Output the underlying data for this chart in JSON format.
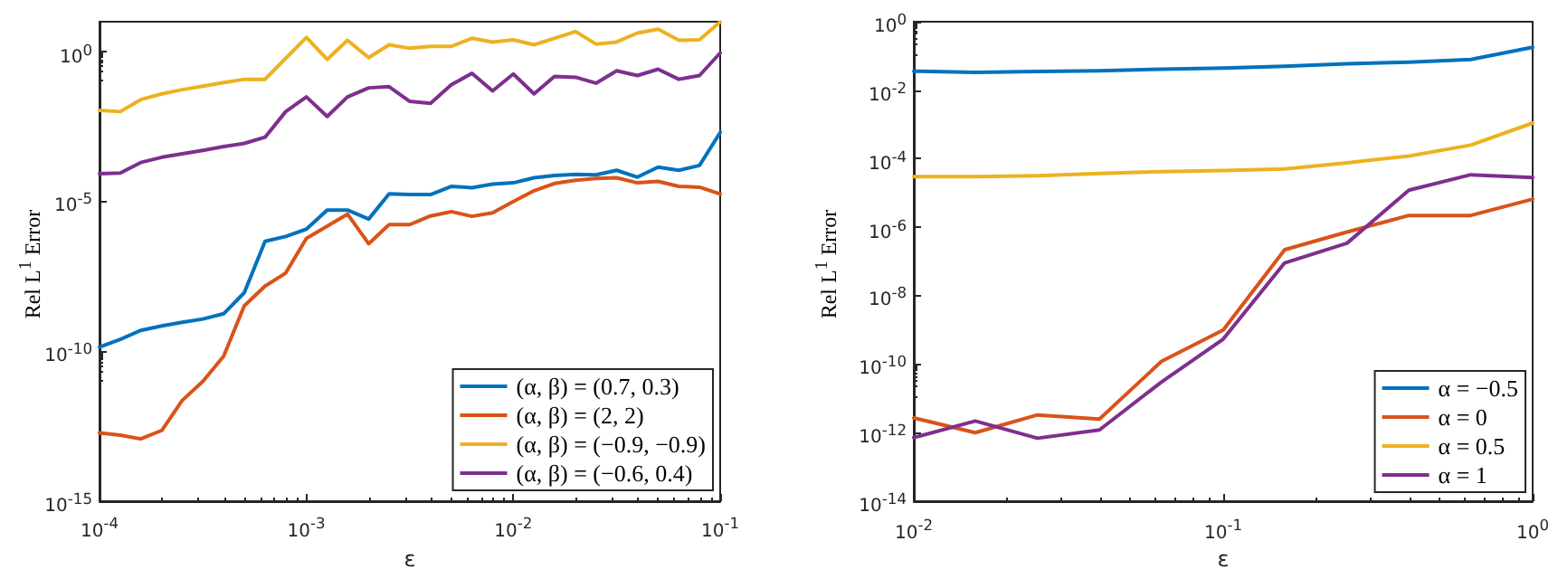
{
  "chart_data": [
    {
      "type": "line",
      "xlabel": "ε",
      "ylabel": "Rel L$^{1}$ Error",
      "log": "xy",
      "grid": false,
      "legend": "bottom right",
      "marker": "none",
      "line_style": "solid",
      "x": [
        0.0001,
        0.000126,
        0.000158,
        0.0002,
        0.000251,
        0.000316,
        0.000398,
        0.000501,
        0.000631,
        0.000794,
        0.001,
        0.00126,
        0.00158,
        0.002,
        0.00251,
        0.00316,
        0.00398,
        0.00501,
        0.00631,
        0.00794,
        0.01,
        0.0126,
        0.0158,
        0.02,
        0.0251,
        0.0316,
        0.0398,
        0.0501,
        0.0631,
        0.0794,
        0.1
      ],
      "xlim": [
        0.0001,
        0.1
      ],
      "ylim": [
        1e-15,
        10
      ],
      "xticks": [
        {
          "value": 0.0001,
          "label": "10$^{-4}$"
        },
        {
          "value": 0.001,
          "label": "10$^{-3}$"
        },
        {
          "value": 0.01,
          "label": "10$^{-2}$"
        },
        {
          "value": 0.1,
          "label": "10$^{-1}$"
        }
      ],
      "yticks": [
        {
          "value": 1e-15,
          "label": "10$^{-15}$"
        },
        {
          "value": 1e-10,
          "label": "10$^{-10}$"
        },
        {
          "value": 1e-05,
          "label": "10$^{-5}$"
        },
        {
          "value": 1,
          "label": "10$^{0}$"
        }
      ],
      "series": [
        {
          "name": "(α, β) = (0.7, 0.3)",
          "color": "#0072bd",
          "values": [
            1.4e-10,
            2.5e-10,
            5e-10,
            7.1e-10,
            9.3e-10,
            1.2e-09,
            1.8e-09,
            9.1e-09,
            4.7e-07,
            6.8e-07,
            1.2e-06,
            5.2e-06,
            5.2e-06,
            2.6e-06,
            1.8e-05,
            1.7e-05,
            1.7e-05,
            3.2e-05,
            2.9e-05,
            3.8e-05,
            4.2e-05,
            6.2e-05,
            7.4e-05,
            8.1e-05,
            7.8e-05,
            0.00011,
            6.5e-05,
            0.00014,
            0.00011,
            0.00016,
            0.002
          ]
        },
        {
          "name": "(α, β) = (2, 2)",
          "color": "#d95319",
          "values": [
            1.9e-13,
            1.6e-13,
            1.2e-13,
            2.3e-13,
            2.3e-12,
            1e-11,
            6.9e-11,
            3.3e-09,
            1.5e-08,
            4.1e-08,
            5.9e-07,
            1.5e-06,
            3.8e-06,
            3.9e-07,
            1.7e-06,
            1.7e-06,
            3.3e-06,
            4.6e-06,
            3.2e-06,
            4.2e-06,
            1e-05,
            2.3e-05,
            4e-05,
            5.1e-05,
            5.9e-05,
            6.2e-05,
            4.2e-05,
            4.7e-05,
            3.2e-05,
            3e-05,
            1.8e-05
          ]
        },
        {
          "name": "(α, β) = (−0.9, −0.9)",
          "color": "#edb120",
          "values": [
            0.011,
            0.01,
            0.025,
            0.039,
            0.054,
            0.071,
            0.093,
            0.12,
            0.12,
            0.6,
            3.0,
            0.55,
            2.4,
            0.63,
            1.7,
            1.3,
            1.5,
            1.5,
            2.8,
            2.1,
            2.5,
            1.7,
            2.8,
            4.7,
            1.8,
            2.1,
            4.2,
            5.6,
            2.4,
            2.5,
            9.8
          ]
        },
        {
          "name": "(α, β) = (−0.6, 0.4)",
          "color": "#7e2f8e",
          "values": [
            8.5e-05,
            8.9e-05,
            0.0002,
            0.0003,
            0.00039,
            0.00051,
            0.00068,
            0.00087,
            0.0014,
            0.01,
            0.031,
            0.0069,
            0.031,
            0.062,
            0.068,
            0.022,
            0.019,
            0.078,
            0.19,
            0.049,
            0.18,
            0.039,
            0.15,
            0.14,
            0.089,
            0.23,
            0.16,
            0.26,
            0.12,
            0.16,
            0.91
          ]
        }
      ]
    },
    {
      "type": "line",
      "xlabel": "ε",
      "ylabel": "Rel L$^{1}$ Error",
      "log": "xy",
      "grid": false,
      "legend": "bottom right",
      "marker": "none",
      "line_style": "solid",
      "x": [
        0.01,
        0.0158,
        0.0251,
        0.0398,
        0.0631,
        0.1,
        0.158,
        0.251,
        0.398,
        0.631,
        1
      ],
      "xlim": [
        0.01,
        1
      ],
      "ylim": [
        1e-14,
        1
      ],
      "xticks": [
        {
          "value": 0.01,
          "label": "10$^{-2}$"
        },
        {
          "value": 0.1,
          "label": "10$^{-1}$"
        },
        {
          "value": 1,
          "label": "10$^{0}$"
        }
      ],
      "yticks": [
        {
          "value": 1e-14,
          "label": "10$^{-14}$"
        },
        {
          "value": 1e-12,
          "label": "10$^{-12}$"
        },
        {
          "value": 1e-10,
          "label": "10$^{-10}$"
        },
        {
          "value": 1e-08,
          "label": "10$^{-8}$"
        },
        {
          "value": 1e-06,
          "label": "10$^{-6}$"
        },
        {
          "value": 0.0001,
          "label": "10$^{-4}$"
        },
        {
          "value": 0.01,
          "label": "10$^{-2}$"
        },
        {
          "value": 1,
          "label": "10$^{0}$"
        }
      ],
      "series": [
        {
          "name": "α = −0.5",
          "color": "#0072bd",
          "values": [
            0.036,
            0.033,
            0.035,
            0.037,
            0.041,
            0.044,
            0.05,
            0.059,
            0.066,
            0.079,
            0.18
          ]
        },
        {
          "name": "α = 0",
          "color": "#d95319",
          "values": [
            2.7e-12,
            1e-12,
            3.3e-12,
            2.5e-12,
            1.2e-10,
            1e-09,
            2.2e-07,
            7.2e-07,
            2.2e-06,
            2.2e-06,
            6.6e-06
          ]
        },
        {
          "name": "α = 0.5",
          "color": "#edb120",
          "values": [
            3e-05,
            3e-05,
            3.2e-05,
            3.7e-05,
            4.2e-05,
            4.5e-05,
            5e-05,
            7.6e-05,
            0.00012,
            0.00025,
            0.0011
          ]
        },
        {
          "name": "α = 1",
          "color": "#7e2f8e",
          "values": [
            7.2e-13,
            2.2e-12,
            6.9e-13,
            1.2e-12,
            3e-11,
            5.4e-10,
            9.1e-08,
            3.4e-07,
            1.2e-05,
            3.4e-05,
            2.8e-05
          ]
        }
      ]
    }
  ]
}
